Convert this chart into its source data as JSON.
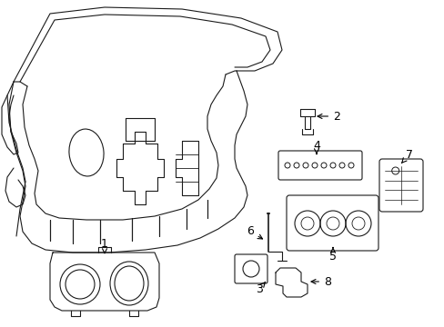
{
  "background_color": "#ffffff",
  "line_color": "#1a1a1a",
  "line_width": 0.8,
  "figsize": [
    4.89,
    3.6
  ],
  "dpi": 100
}
